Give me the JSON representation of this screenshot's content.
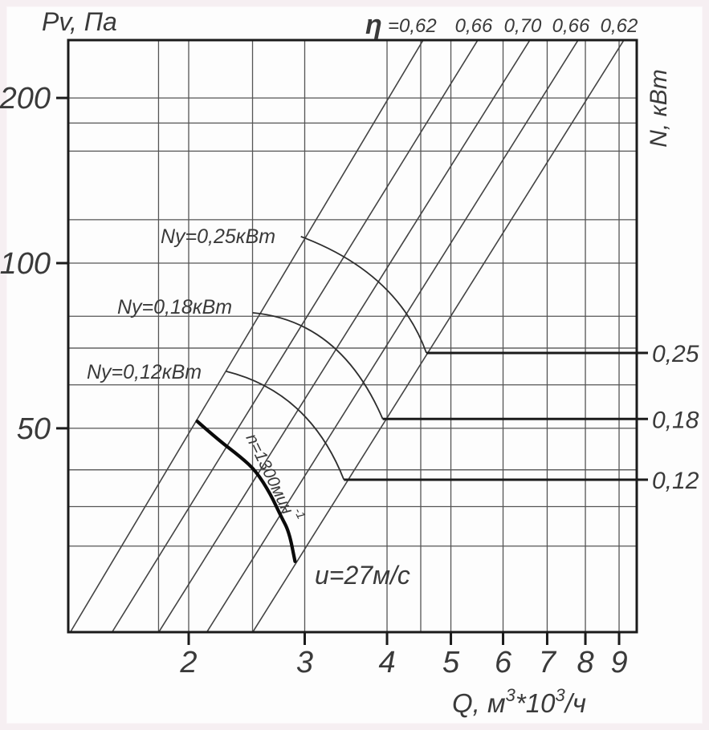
{
  "colors": {
    "ink": "#2f2f2f",
    "grid_line": "#555555",
    "eta_line": "#444444",
    "arc_line": "#2e2e2e",
    "border": "#1b1b1b",
    "bold_curve": "#0a0a0a",
    "scan_margin": "#f6eff2"
  },
  "chart_data": {
    "type": "line",
    "x_axis": {
      "label": "Q, м³*10³/ч",
      "label_parts": [
        {
          "t": "Q,  м"
        },
        {
          "t": "3",
          "sup": true
        },
        {
          "t": "*10"
        },
        {
          "t": "3",
          "sup": true
        },
        {
          "t": "/ч"
        }
      ],
      "scale": "log",
      "ticks": [
        "2",
        "3",
        "4",
        "5",
        "6",
        "7",
        "8",
        "9"
      ],
      "tick_values": [
        2,
        3,
        4,
        5,
        6,
        7,
        8,
        9
      ],
      "range": [
        1.31,
        9.57
      ],
      "gridlines_Q": [
        1.8,
        2,
        2.5,
        3,
        4,
        4.5,
        5,
        6,
        7,
        8,
        9
      ]
    },
    "y_axis": {
      "label": "Pv,  Па",
      "scale": "log",
      "ticks": [
        "200",
        "100",
        "50"
      ],
      "tick_values": [
        200,
        100,
        50
      ],
      "range": [
        21.3,
        255
      ],
      "gridlines_P": [
        200,
        180,
        160,
        120,
        100,
        80,
        70,
        60,
        50,
        42,
        36,
        30.5
      ]
    },
    "right_axis": {
      "label": "N,  кВт",
      "ticks": [
        {
          "label": "0,25",
          "at_P": 68.6
        },
        {
          "label": "0,18",
          "at_P": 52.0
        },
        {
          "label": "0,12",
          "at_P": 40.3
        }
      ]
    },
    "eta_header": {
      "symbol": "η",
      "first_prefix": "=",
      "values": [
        "0,62",
        "0,66",
        "0,70",
        "0,66",
        "0,62"
      ]
    },
    "eta_lines": [
      {
        "value": 0.62,
        "from": [
          1.324,
          21.3
        ],
        "to": [
          4.538,
          255
        ]
      },
      {
        "value": 0.66,
        "from": [
          1.532,
          21.3
        ],
        "to": [
          5.493,
          255
        ]
      },
      {
        "value": 0.7,
        "from": [
          1.803,
          21.3
        ],
        "to": [
          6.59,
          255
        ]
      },
      {
        "value": 0.66,
        "from": [
          2.133,
          21.3
        ],
        "to": [
          7.8,
          255
        ]
      },
      {
        "value": 0.62,
        "from": [
          2.504,
          21.3
        ],
        "to": [
          9.153,
          255
        ]
      }
    ],
    "fan_curve": {
      "label_parts": [
        {
          "t": "n=1300мин"
        },
        {
          "t": "-1",
          "sup": true
        }
      ],
      "label": "n=1300мин⁻¹",
      "points": [
        [
          2.06,
          51.5
        ],
        [
          2.21,
          47.8
        ],
        [
          2.4,
          44.3
        ],
        [
          2.53,
          41.8
        ],
        [
          2.66,
          38.0
        ],
        [
          2.76,
          34.6
        ],
        [
          2.84,
          32.4
        ],
        [
          2.9,
          28.6
        ]
      ]
    },
    "speed_label": "u=27м/с",
    "power_arcs": [
      {
        "label": "Ny=0,25кВт",
        "N": "0,25",
        "start": [
          2.96,
          111.8
        ],
        "ctrl": [
          4.15,
          96.0
        ],
        "end": [
          4.59,
          68.6
        ]
      },
      {
        "label": "Ny=0,18кВт",
        "N": "0,18",
        "start": [
          2.5,
          81.2
        ],
        "ctrl": [
          3.4,
          78.5
        ],
        "end": [
          3.94,
          52.0
        ]
      },
      {
        "label": "Ny=0,12кВт",
        "N": "0,12",
        "start": [
          2.28,
          63.5
        ],
        "ctrl": [
          3.05,
          58.2
        ],
        "end": [
          3.44,
          40.3
        ]
      }
    ]
  }
}
